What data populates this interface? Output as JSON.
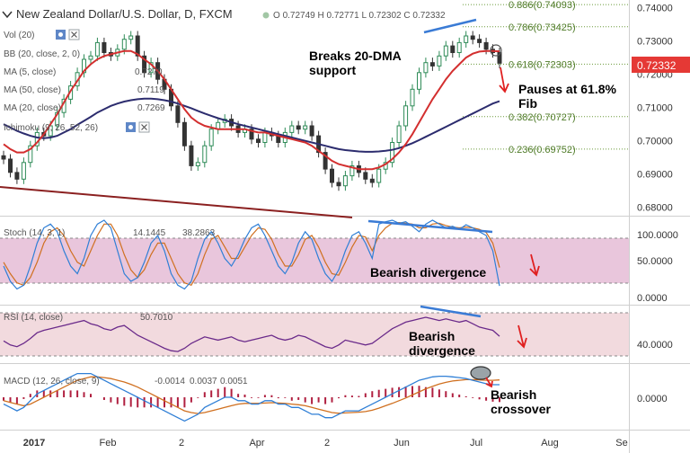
{
  "chart_data": [
    {
      "type": "candlestick",
      "title": "New Zealand Dollar/U.S. Dollar, D, FXCM",
      "ohlc": {
        "o": "0.72749",
        "h": "0.72771",
        "l": "0.72302",
        "c": "0.72332"
      },
      "ohlc_labels": {
        "o": "O",
        "h": "H",
        "l": "L",
        "c": "C"
      },
      "last_price": "0.72332",
      "x_ticks": [
        "2017",
        "Feb",
        "2",
        "Apr",
        "2",
        "Jun",
        "Jul",
        "Aug",
        "Se"
      ],
      "y_ticks": [
        "0.74000",
        "0.73000",
        "0.72000",
        "0.71000",
        "0.70000",
        "0.69000",
        "0.68000"
      ],
      "ylim": [
        0.6775,
        0.7415
      ],
      "indicators": [
        {
          "label": "Vol (20)"
        },
        {
          "label": "BB (20, close, 2, 0)"
        },
        {
          "label": "MA (5, close)",
          "value": "0.7270",
          "color": "#3a5fcd"
        },
        {
          "label": "MA (50, close)",
          "value": "0.7119",
          "color": "#2c2c6e"
        },
        {
          "label": "MA (20, close)",
          "value": "0.7269",
          "color": "#d32f2f"
        },
        {
          "label": "Ichimoku (9, 26, 52, 26)"
        }
      ],
      "fib_levels": [
        {
          "label": "0.886(0.74093)",
          "value": 0.74093
        },
        {
          "label": "0.786(0.73425)",
          "value": 0.73425
        },
        {
          "label": "0.618(0.72303)",
          "value": 0.72303
        },
        {
          "label": "0.382(0.70727)",
          "value": 0.70727
        },
        {
          "label": "0.236(0.69752)",
          "value": 0.69752
        }
      ],
      "annotations": [
        {
          "text": "Breaks 20-DMA",
          "text2": "support"
        },
        {
          "text": "Pauses at 61.8%",
          "text2": "Fib"
        }
      ],
      "series": [
        {
          "name": "close",
          "values": [
            0.6945,
            0.6905,
            0.6885,
            0.6935,
            0.6985,
            0.7025,
            0.7015,
            0.7045,
            0.7085,
            0.7125,
            0.7165,
            0.7205,
            0.7245,
            0.7255,
            0.7295,
            0.7265,
            0.7255,
            0.7275,
            0.7305,
            0.7315,
            0.7255,
            0.7205,
            0.7235,
            0.7185,
            0.7155,
            0.7105,
            0.7055,
            0.6985,
            0.6925,
            0.6935,
            0.6985,
            0.7035,
            0.7055,
            0.7065,
            0.7045,
            0.7025,
            0.7035,
            0.7005,
            0.6995,
            0.7025,
            0.7015,
            0.6995,
            0.7025,
            0.7045,
            0.7035,
            0.7045,
            0.7015,
            0.6965,
            0.6915,
            0.6875,
            0.6865,
            0.6895,
            0.6925,
            0.6905,
            0.6885,
            0.6875,
            0.6915,
            0.6935,
            0.6995,
            0.7045,
            0.7105,
            0.7155,
            0.7205,
            0.7235,
            0.7225,
            0.7255,
            0.7285,
            0.7265,
            0.7295,
            0.7315,
            0.7305,
            0.7295,
            0.7275,
            0.7265,
            0.7233
          ]
        },
        {
          "name": "MA (20, close)",
          "values": [
            0.699,
            0.6975,
            0.6965,
            0.6965,
            0.6975,
            0.6995,
            0.702,
            0.705,
            0.708,
            0.7115,
            0.715,
            0.718,
            0.721,
            0.723,
            0.7245,
            0.7255,
            0.726,
            0.7265,
            0.727,
            0.727,
            0.726,
            0.7245,
            0.723,
            0.721,
            0.7185,
            0.7155,
            0.7125,
            0.7095,
            0.707,
            0.7055,
            0.7045,
            0.704,
            0.7035,
            0.7035,
            0.7035,
            0.7035,
            0.7035,
            0.703,
            0.7025,
            0.7025,
            0.702,
            0.7015,
            0.701,
            0.7005,
            0.7,
            0.6995,
            0.6985,
            0.697,
            0.6955,
            0.694,
            0.693,
            0.6925,
            0.692,
            0.6915,
            0.6915,
            0.6915,
            0.692,
            0.693,
            0.6945,
            0.6965,
            0.699,
            0.702,
            0.7055,
            0.709,
            0.7125,
            0.7155,
            0.7185,
            0.721,
            0.723,
            0.725,
            0.7262,
            0.7268,
            0.727,
            0.727,
            0.7269
          ]
        },
        {
          "name": "MA (50, close)",
          "values": [
            0.705,
            0.704,
            0.703,
            0.7022,
            0.7015,
            0.701,
            0.7008,
            0.701,
            0.7015,
            0.7025,
            0.7035,
            0.7048,
            0.706,
            0.7072,
            0.7085,
            0.7095,
            0.7105,
            0.7112,
            0.7118,
            0.7122,
            0.7125,
            0.7127,
            0.7127,
            0.7125,
            0.7122,
            0.7118,
            0.7112,
            0.7105,
            0.7098,
            0.709,
            0.7082,
            0.7075,
            0.7068,
            0.7062,
            0.7056,
            0.705,
            0.7045,
            0.704,
            0.7035,
            0.703,
            0.7025,
            0.702,
            0.7015,
            0.701,
            0.7005,
            0.7,
            0.6995,
            0.699,
            0.6985,
            0.698,
            0.6975,
            0.6972,
            0.697,
            0.6968,
            0.6967,
            0.6967,
            0.6968,
            0.697,
            0.6973,
            0.6978,
            0.6985,
            0.6993,
            0.7002,
            0.7012,
            0.7022,
            0.7032,
            0.7042,
            0.7052,
            0.7062,
            0.7072,
            0.7082,
            0.7092,
            0.7102,
            0.7112,
            0.7119
          ]
        }
      ]
    },
    {
      "type": "line",
      "indicator": "Stoch (14, 3, 1)",
      "values_text": [
        "14.1445",
        "38.2863"
      ],
      "y_ticks": [
        "100.0000",
        "50.0000",
        "0.0000"
      ],
      "ylim": [
        0,
        100
      ],
      "bands": [
        20,
        80
      ],
      "annotation": "Bearish divergence",
      "series": [
        {
          "name": "%K",
          "values": [
            40,
            20,
            10,
            15,
            40,
            70,
            90,
            95,
            85,
            60,
            40,
            30,
            50,
            80,
            95,
            100,
            90,
            60,
            30,
            20,
            25,
            45,
            70,
            80,
            60,
            30,
            15,
            10,
            20,
            50,
            75,
            85,
            70,
            50,
            40,
            55,
            75,
            90,
            95,
            80,
            60,
            40,
            30,
            45,
            70,
            85,
            75,
            50,
            30,
            20,
            35,
            60,
            80,
            85,
            70,
            50,
            95,
            98,
            100,
            96,
            98,
            92,
            85,
            95,
            100,
            95,
            90,
            92,
            88,
            94,
            90,
            85,
            80,
            60,
            14
          ]
        },
        {
          "name": "%D",
          "values": [
            45,
            30,
            18,
            15,
            25,
            45,
            70,
            85,
            90,
            80,
            60,
            45,
            40,
            60,
            80,
            95,
            95,
            80,
            55,
            35,
            25,
            35,
            55,
            70,
            70,
            50,
            30,
            18,
            15,
            30,
            55,
            75,
            80,
            65,
            50,
            50,
            65,
            80,
            90,
            88,
            75,
            55,
            40,
            40,
            55,
            75,
            80,
            65,
            45,
            30,
            28,
            45,
            65,
            80,
            78,
            60,
            80,
            90,
            96,
            97,
            96,
            95,
            90,
            90,
            95,
            96,
            93,
            91,
            90,
            91,
            90,
            88,
            84,
            70,
            38
          ]
        }
      ]
    },
    {
      "type": "line",
      "indicator": "RSI (14, close)",
      "values_text": [
        "50.7010"
      ],
      "y_ticks": [
        "40.0000"
      ],
      "ylim": [
        20,
        85
      ],
      "bands": [
        30,
        70
      ],
      "annotation_lines": [
        "Bearish",
        "divergence"
      ],
      "series": [
        {
          "name": "RSI",
          "values": [
            45,
            40,
            38,
            42,
            48,
            55,
            58,
            60,
            62,
            64,
            66,
            68,
            70,
            66,
            64,
            60,
            58,
            62,
            64,
            58,
            52,
            48,
            44,
            40,
            36,
            33,
            32,
            36,
            42,
            46,
            50,
            48,
            46,
            48,
            50,
            46,
            44,
            46,
            48,
            50,
            52,
            48,
            46,
            48,
            52,
            50,
            46,
            42,
            38,
            36,
            40,
            46,
            44,
            42,
            40,
            42,
            48,
            54,
            60,
            64,
            68,
            70,
            72,
            74,
            72,
            70,
            72,
            70,
            68,
            70,
            66,
            62,
            60,
            58,
            50.7
          ]
        }
      ]
    },
    {
      "type": "line",
      "indicator": "MACD (12, 26, close, 9)",
      "values_text": [
        "-0.0014",
        "0.0037",
        "0.0051"
      ],
      "y_ticks": [
        "0.0000"
      ],
      "ylim": [
        -0.009,
        0.009
      ],
      "annotation_lines": [
        "Bearish",
        "crossover"
      ],
      "series": [
        {
          "name": "MACD",
          "values": [
            -0.002,
            -0.003,
            -0.004,
            -0.003,
            -0.001,
            0.001,
            0.002,
            0.003,
            0.004,
            0.005,
            0.006,
            0.007,
            0.007,
            0.007,
            0.006,
            0.005,
            0.004,
            0.003,
            0.002,
            0.001,
            0.0,
            -0.001,
            -0.002,
            -0.003,
            -0.004,
            -0.005,
            -0.006,
            -0.007,
            -0.006,
            -0.005,
            -0.003,
            -0.002,
            -0.001,
            0.0,
            0.0,
            -0.001,
            -0.001,
            -0.002,
            -0.002,
            -0.001,
            -0.001,
            -0.002,
            -0.002,
            -0.003,
            -0.003,
            -0.004,
            -0.005,
            -0.005,
            -0.006,
            -0.006,
            -0.005,
            -0.004,
            -0.004,
            -0.004,
            -0.003,
            -0.002,
            -0.001,
            0.0,
            0.001,
            0.002,
            0.003,
            0.004,
            0.005,
            0.0055,
            0.006,
            0.0062,
            0.0062,
            0.006,
            0.0058,
            0.0055,
            0.005,
            0.0045,
            0.004,
            0.0037,
            0.0037
          ]
        },
        {
          "name": "Signal",
          "values": [
            -0.001,
            -0.0015,
            -0.002,
            -0.0025,
            -0.002,
            -0.001,
            0.0,
            0.001,
            0.002,
            0.003,
            0.004,
            0.005,
            0.0055,
            0.006,
            0.006,
            0.0058,
            0.0055,
            0.005,
            0.0045,
            0.0038,
            0.003,
            0.002,
            0.001,
            0.0,
            -0.001,
            -0.002,
            -0.003,
            -0.004,
            -0.0045,
            -0.0048,
            -0.0045,
            -0.004,
            -0.0035,
            -0.003,
            -0.0025,
            -0.002,
            -0.0018,
            -0.0018,
            -0.0018,
            -0.0017,
            -0.0016,
            -0.0017,
            -0.0018,
            -0.002,
            -0.0022,
            -0.0025,
            -0.003,
            -0.0035,
            -0.004,
            -0.0045,
            -0.0047,
            -0.0046,
            -0.0045,
            -0.0044,
            -0.0042,
            -0.0038,
            -0.0032,
            -0.0025,
            -0.0018,
            -0.001,
            -0.0002,
            0.0007,
            0.0016,
            0.0025,
            0.0032,
            0.0039,
            0.0044,
            0.0048,
            0.005,
            0.0052,
            0.0052,
            0.0051,
            0.005,
            0.005,
            0.0051
          ]
        }
      ]
    }
  ]
}
